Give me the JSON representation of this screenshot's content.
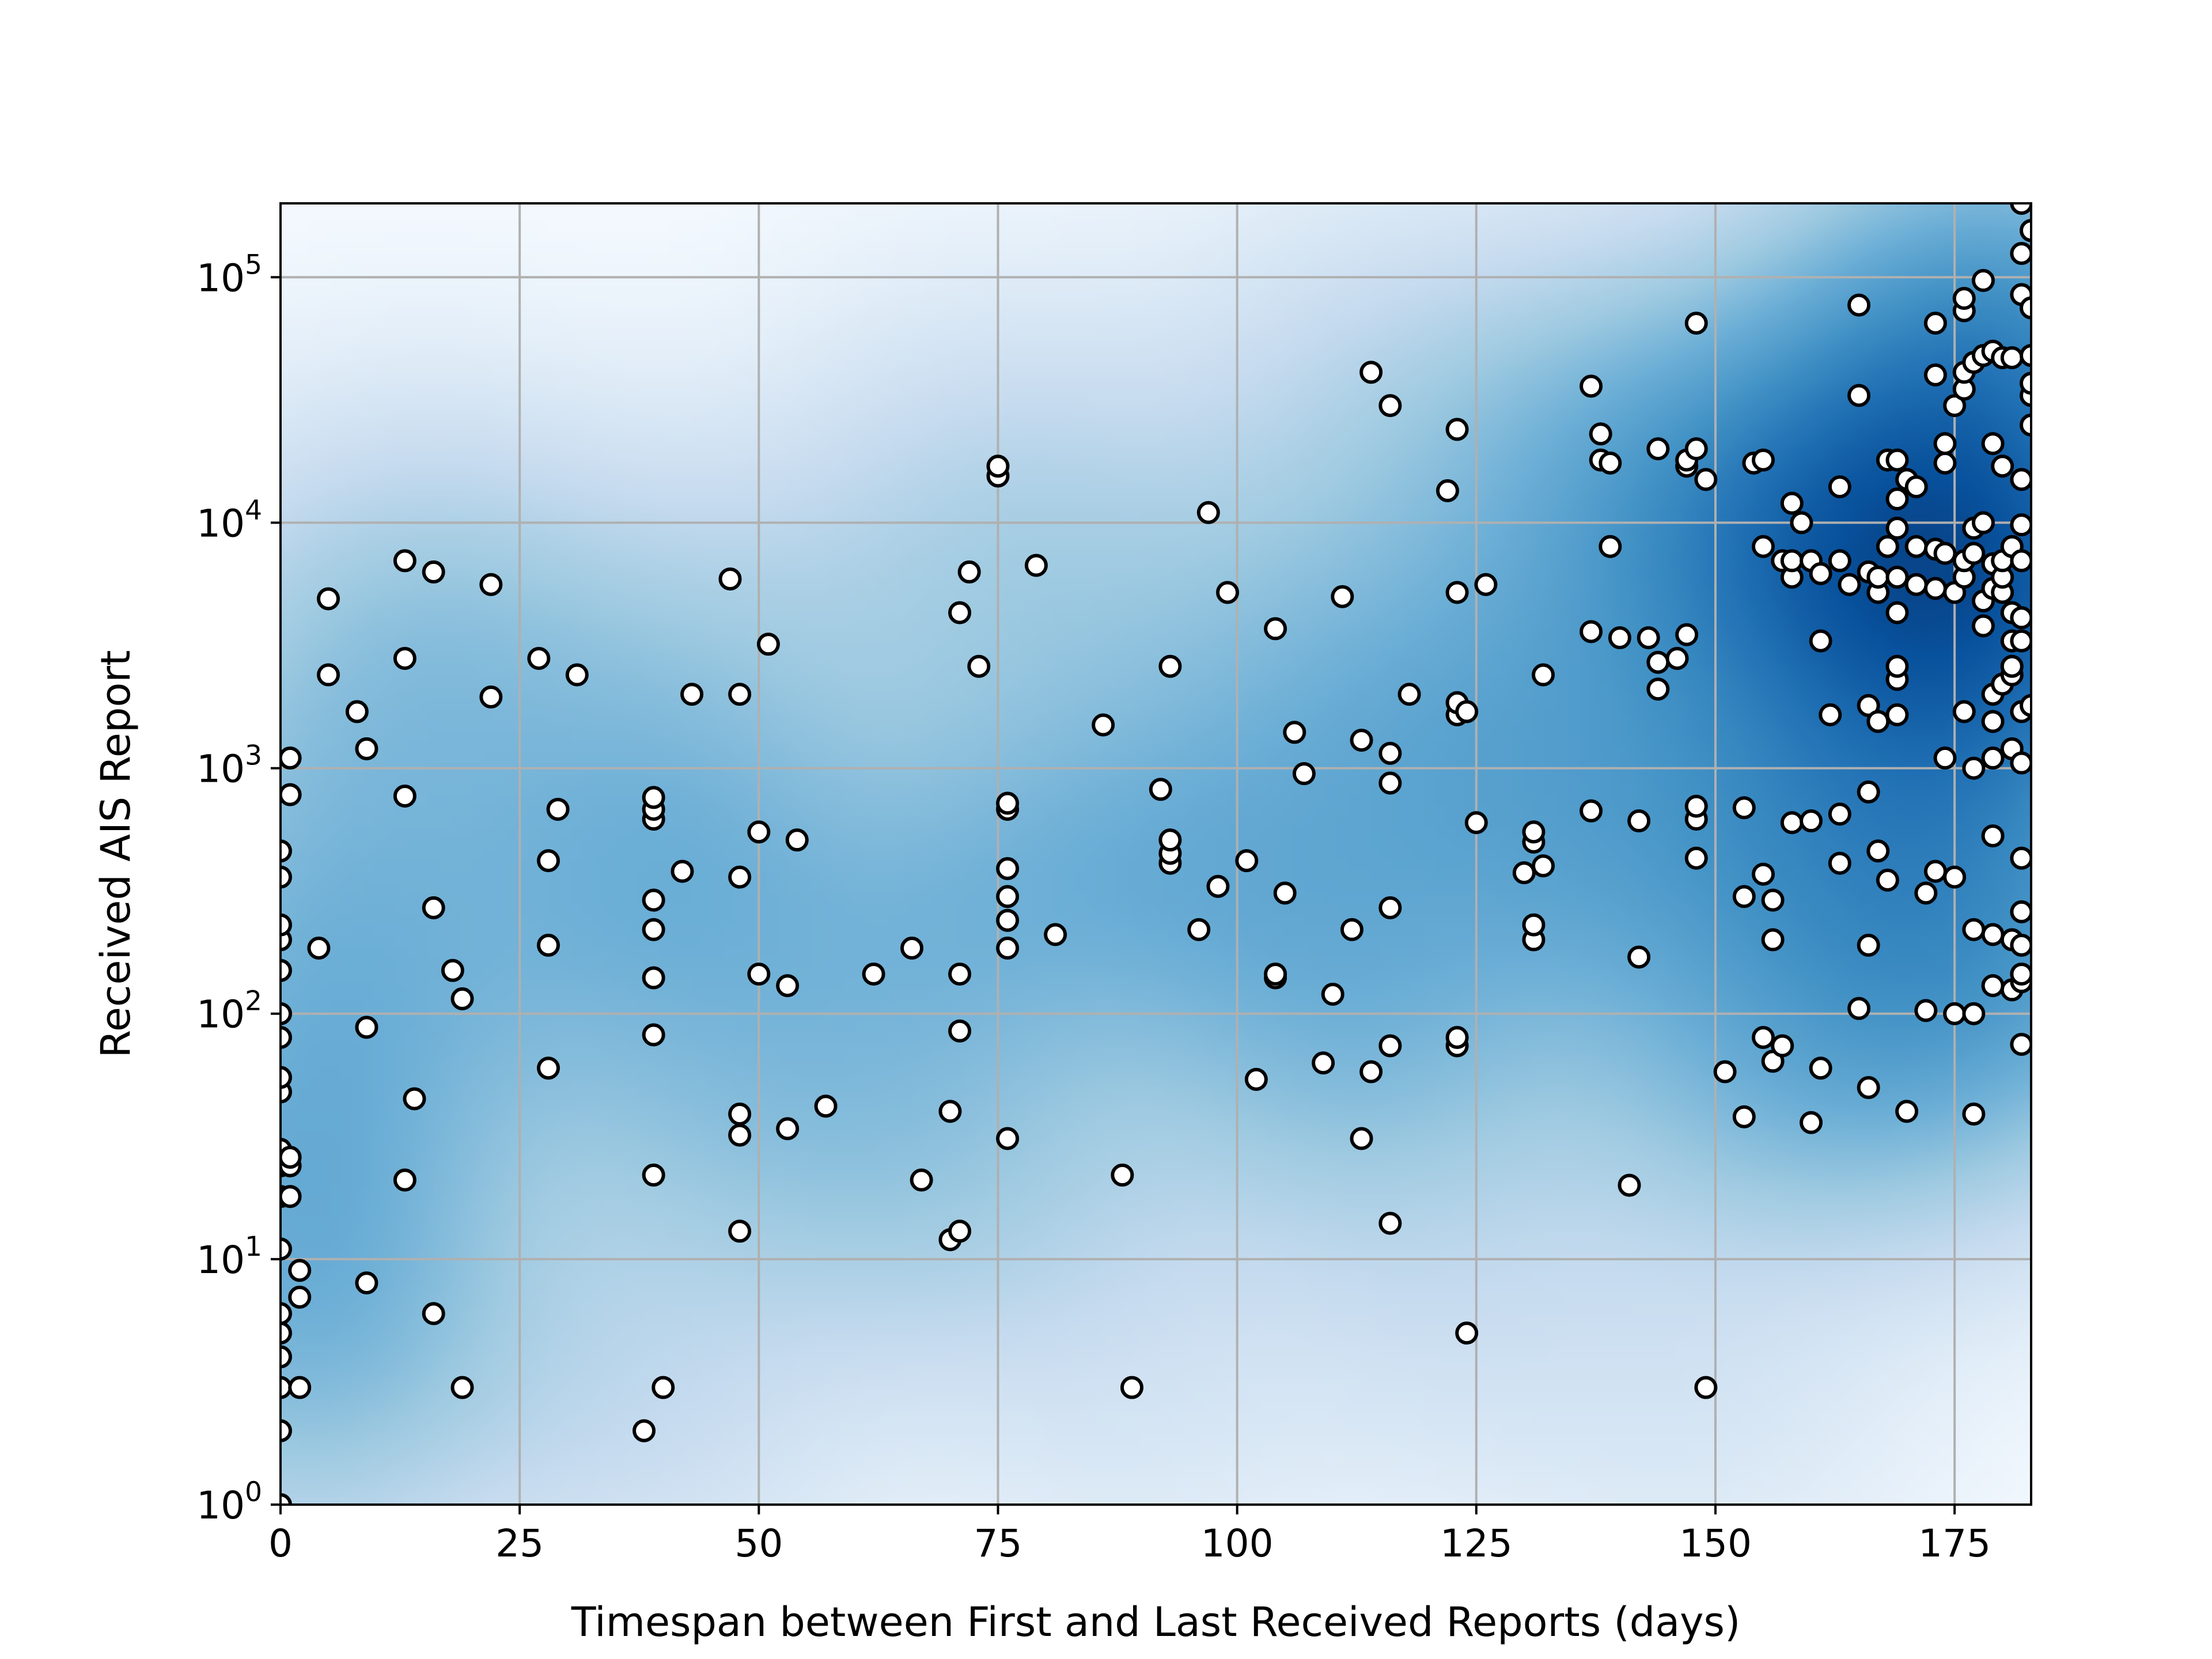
{
  "chart_data": {
    "type": "scatter",
    "title": "",
    "xlabel": "Timespan between First and Last Received Reports (days)",
    "ylabel": "Received AIS Report",
    "xlim": [
      0,
      183
    ],
    "ylim": [
      1,
      200000
    ],
    "yscale": "log",
    "grid": true,
    "legend": "none",
    "background": "kernel density heatmap (Blues colormap)",
    "x_ticks": [
      0,
      25,
      50,
      75,
      100,
      125,
      150,
      175
    ],
    "x_tick_labels": [
      "0",
      "25",
      "50",
      "75",
      "100",
      "125",
      "150",
      "175"
    ],
    "y_ticks": [
      1,
      10,
      100,
      1000,
      10000,
      100000
    ],
    "y_tick_labels": [
      {
        "base": "10",
        "exp": "0"
      },
      {
        "base": "10",
        "exp": "1"
      },
      {
        "base": "10",
        "exp": "2"
      },
      {
        "base": "10",
        "exp": "3"
      },
      {
        "base": "10",
        "exp": "4"
      },
      {
        "base": "10",
        "exp": "5"
      }
    ],
    "colors": {
      "marker_face": "#ffffff",
      "marker_edge": "#000000",
      "grid": "#b0b0b0",
      "heat_low": "#f7fbff",
      "heat_high": "#08519c"
    },
    "points": [
      [
        0,
        1
      ],
      [
        0,
        2
      ],
      [
        0,
        3
      ],
      [
        0,
        4
      ],
      [
        0,
        5
      ],
      [
        0,
        6
      ],
      [
        0,
        11
      ],
      [
        0,
        18
      ],
      [
        0,
        24
      ],
      [
        0,
        28
      ],
      [
        0,
        48
      ],
      [
        0,
        55
      ],
      [
        0,
        80
      ],
      [
        0,
        100
      ],
      [
        0,
        150
      ],
      [
        0,
        200
      ],
      [
        0,
        230
      ],
      [
        0,
        360
      ],
      [
        0,
        460
      ],
      [
        1,
        18
      ],
      [
        1,
        24
      ],
      [
        1,
        26
      ],
      [
        1,
        780
      ],
      [
        1,
        1100
      ],
      [
        2,
        3
      ],
      [
        2,
        7
      ],
      [
        2,
        9
      ],
      [
        4,
        185
      ],
      [
        5,
        2400
      ],
      [
        5,
        4900
      ],
      [
        8,
        1700
      ],
      [
        9,
        8
      ],
      [
        9,
        88
      ],
      [
        9,
        1200
      ],
      [
        13,
        21
      ],
      [
        13,
        770
      ],
      [
        13,
        2800
      ],
      [
        13,
        7000
      ],
      [
        14,
        45
      ],
      [
        16,
        6
      ],
      [
        16,
        270
      ],
      [
        16,
        6300
      ],
      [
        18,
        150
      ],
      [
        19,
        3
      ],
      [
        19,
        115
      ],
      [
        22,
        1950
      ],
      [
        22,
        5600
      ],
      [
        27,
        2800
      ],
      [
        28,
        60
      ],
      [
        28,
        190
      ],
      [
        28,
        420
      ],
      [
        29,
        680
      ],
      [
        31,
        2400
      ],
      [
        38,
        2
      ],
      [
        39,
        22
      ],
      [
        39,
        82
      ],
      [
        39,
        140
      ],
      [
        39,
        220
      ],
      [
        39,
        290
      ],
      [
        39,
        620
      ],
      [
        39,
        680
      ],
      [
        39,
        760
      ],
      [
        40,
        3
      ],
      [
        42,
        380
      ],
      [
        43,
        2000
      ],
      [
        47,
        5900
      ],
      [
        48,
        13
      ],
      [
        48,
        32
      ],
      [
        48,
        39
      ],
      [
        48,
        360
      ],
      [
        48,
        2000
      ],
      [
        50,
        550
      ],
      [
        50,
        145
      ],
      [
        51,
        3200
      ],
      [
        53,
        130
      ],
      [
        53,
        34
      ],
      [
        54,
        510
      ],
      [
        57,
        42
      ],
      [
        62,
        145
      ],
      [
        66,
        185
      ],
      [
        67,
        21
      ],
      [
        70,
        12
      ],
      [
        70,
        40
      ],
      [
        71,
        13
      ],
      [
        71,
        85
      ],
      [
        71,
        145
      ],
      [
        71,
        4300
      ],
      [
        72,
        6300
      ],
      [
        73,
        2600
      ],
      [
        75,
        15500
      ],
      [
        75,
        17000
      ],
      [
        76,
        31
      ],
      [
        76,
        185
      ],
      [
        76,
        240
      ],
      [
        76,
        300
      ],
      [
        76,
        390
      ],
      [
        76,
        680
      ],
      [
        76,
        720
      ],
      [
        79,
        6700
      ],
      [
        81,
        210
      ],
      [
        86,
        1500
      ],
      [
        88,
        22
      ],
      [
        89,
        3
      ],
      [
        92,
        820
      ],
      [
        93,
        410
      ],
      [
        93,
        450
      ],
      [
        93,
        510
      ],
      [
        93,
        2600
      ],
      [
        96,
        220
      ],
      [
        97,
        11000
      ],
      [
        98,
        330
      ],
      [
        99,
        5200
      ],
      [
        101,
        420
      ],
      [
        102,
        54
      ],
      [
        104,
        3700
      ],
      [
        104,
        140
      ],
      [
        104,
        145
      ],
      [
        105,
        310
      ],
      [
        106,
        1400
      ],
      [
        107,
        950
      ],
      [
        109,
        63
      ],
      [
        110,
        120
      ],
      [
        111,
        5000
      ],
      [
        112,
        220
      ],
      [
        113,
        31
      ],
      [
        113,
        1300
      ],
      [
        114,
        58
      ],
      [
        114,
        41000
      ],
      [
        116,
        14
      ],
      [
        116,
        74
      ],
      [
        116,
        270
      ],
      [
        116,
        870
      ],
      [
        116,
        1150
      ],
      [
        116,
        30000
      ],
      [
        118,
        2000
      ],
      [
        122,
        13500
      ],
      [
        123,
        74
      ],
      [
        123,
        80
      ],
      [
        123,
        1650
      ],
      [
        123,
        1850
      ],
      [
        123,
        5200
      ],
      [
        123,
        24000
      ],
      [
        124,
        5
      ],
      [
        124,
        1700
      ],
      [
        125,
        600
      ],
      [
        126,
        5600
      ],
      [
        130,
        375
      ],
      [
        131,
        200
      ],
      [
        131,
        230
      ],
      [
        131,
        500
      ],
      [
        131,
        550
      ],
      [
        132,
        400
      ],
      [
        132,
        2400
      ],
      [
        137,
        670
      ],
      [
        137,
        3600
      ],
      [
        137,
        36000
      ],
      [
        138,
        18000
      ],
      [
        138,
        23000
      ],
      [
        139,
        17500
      ],
      [
        139,
        8000
      ],
      [
        140,
        3400
      ],
      [
        141,
        20
      ],
      [
        142,
        170
      ],
      [
        142,
        610
      ],
      [
        143,
        3400
      ],
      [
        144,
        2100
      ],
      [
        144,
        2700
      ],
      [
        144,
        20000
      ],
      [
        146,
        2800
      ],
      [
        147,
        3500
      ],
      [
        147,
        17000
      ],
      [
        147,
        18000
      ],
      [
        148,
        430
      ],
      [
        148,
        620
      ],
      [
        148,
        700
      ],
      [
        148,
        20000
      ],
      [
        148,
        65000
      ],
      [
        149,
        3
      ],
      [
        149,
        15000
      ],
      [
        151,
        58
      ],
      [
        153,
        38
      ],
      [
        153,
        300
      ],
      [
        153,
        690
      ],
      [
        154,
        17500
      ],
      [
        155,
        80
      ],
      [
        155,
        8000
      ],
      [
        155,
        18000
      ],
      [
        155,
        370
      ],
      [
        156,
        64
      ],
      [
        156,
        200
      ],
      [
        156,
        290
      ],
      [
        157,
        74
      ],
      [
        157,
        7000
      ],
      [
        158,
        600
      ],
      [
        158,
        6000
      ],
      [
        158,
        7000
      ],
      [
        158,
        12000
      ],
      [
        159,
        10000
      ],
      [
        160,
        36
      ],
      [
        160,
        610
      ],
      [
        160,
        7000
      ],
      [
        161,
        60
      ],
      [
        161,
        3300
      ],
      [
        161,
        6200
      ],
      [
        162,
        1650
      ],
      [
        163,
        410
      ],
      [
        163,
        650
      ],
      [
        163,
        7000
      ],
      [
        163,
        14000
      ],
      [
        164,
        5600
      ],
      [
        165,
        105
      ],
      [
        165,
        33000
      ],
      [
        165,
        77000
      ],
      [
        166,
        50
      ],
      [
        166,
        190
      ],
      [
        166,
        800
      ],
      [
        166,
        1800
      ],
      [
        166,
        6300
      ],
      [
        167,
        460
      ],
      [
        167,
        1550
      ],
      [
        167,
        5200
      ],
      [
        167,
        6000
      ],
      [
        168,
        350
      ],
      [
        168,
        8000
      ],
      [
        168,
        18000
      ],
      [
        169,
        1650
      ],
      [
        169,
        2300
      ],
      [
        169,
        2600
      ],
      [
        169,
        4300
      ],
      [
        169,
        6000
      ],
      [
        169,
        9500
      ],
      [
        169,
        12500
      ],
      [
        169,
        18000
      ],
      [
        170,
        40
      ],
      [
        170,
        15000
      ],
      [
        171,
        14000
      ],
      [
        171,
        5600
      ],
      [
        171,
        8000
      ],
      [
        172,
        103
      ],
      [
        172,
        310
      ],
      [
        173,
        380
      ],
      [
        173,
        5400
      ],
      [
        173,
        7800
      ],
      [
        173,
        40000
      ],
      [
        173,
        65000
      ],
      [
        174,
        1100
      ],
      [
        174,
        7500
      ],
      [
        174,
        17500
      ],
      [
        174,
        21000
      ],
      [
        175,
        100
      ],
      [
        175,
        360
      ],
      [
        175,
        5200
      ],
      [
        175,
        30000
      ],
      [
        176,
        1700
      ],
      [
        176,
        6000
      ],
      [
        176,
        7000
      ],
      [
        176,
        35000
      ],
      [
        176,
        41000
      ],
      [
        176,
        73000
      ],
      [
        176,
        82000
      ],
      [
        177,
        39
      ],
      [
        177,
        100
      ],
      [
        177,
        220
      ],
      [
        177,
        1000
      ],
      [
        177,
        7500
      ],
      [
        177,
        9500
      ],
      [
        177,
        45000
      ],
      [
        178,
        3800
      ],
      [
        178,
        4800
      ],
      [
        178,
        10000
      ],
      [
        178,
        48000
      ],
      [
        178,
        97000
      ],
      [
        179,
        130
      ],
      [
        179,
        210
      ],
      [
        179,
        530
      ],
      [
        179,
        1100
      ],
      [
        179,
        1550
      ],
      [
        179,
        2000
      ],
      [
        179,
        5400
      ],
      [
        179,
        6800
      ],
      [
        179,
        21000
      ],
      [
        179,
        50000
      ],
      [
        180,
        2200
      ],
      [
        180,
        5200
      ],
      [
        180,
        6000
      ],
      [
        180,
        7000
      ],
      [
        180,
        17000
      ],
      [
        180,
        47000
      ],
      [
        181,
        125
      ],
      [
        181,
        200
      ],
      [
        181,
        1200
      ],
      [
        181,
        2400
      ],
      [
        181,
        2600
      ],
      [
        181,
        3300
      ],
      [
        181,
        4300
      ],
      [
        181,
        8000
      ],
      [
        181,
        47000
      ],
      [
        182,
        75
      ],
      [
        182,
        135
      ],
      [
        182,
        145
      ],
      [
        182,
        190
      ],
      [
        182,
        260
      ],
      [
        182,
        430
      ],
      [
        182,
        1050
      ],
      [
        182,
        1700
      ],
      [
        182,
        3300
      ],
      [
        182,
        4100
      ],
      [
        182,
        7000
      ],
      [
        182,
        9800
      ],
      [
        182,
        15000
      ],
      [
        182,
        85000
      ],
      [
        182,
        125000
      ],
      [
        182,
        200000
      ],
      [
        183,
        1800
      ],
      [
        183,
        25000
      ],
      [
        183,
        33000
      ],
      [
        183,
        37000
      ],
      [
        183,
        48000
      ],
      [
        183,
        75000
      ],
      [
        183,
        155000
      ]
    ]
  }
}
